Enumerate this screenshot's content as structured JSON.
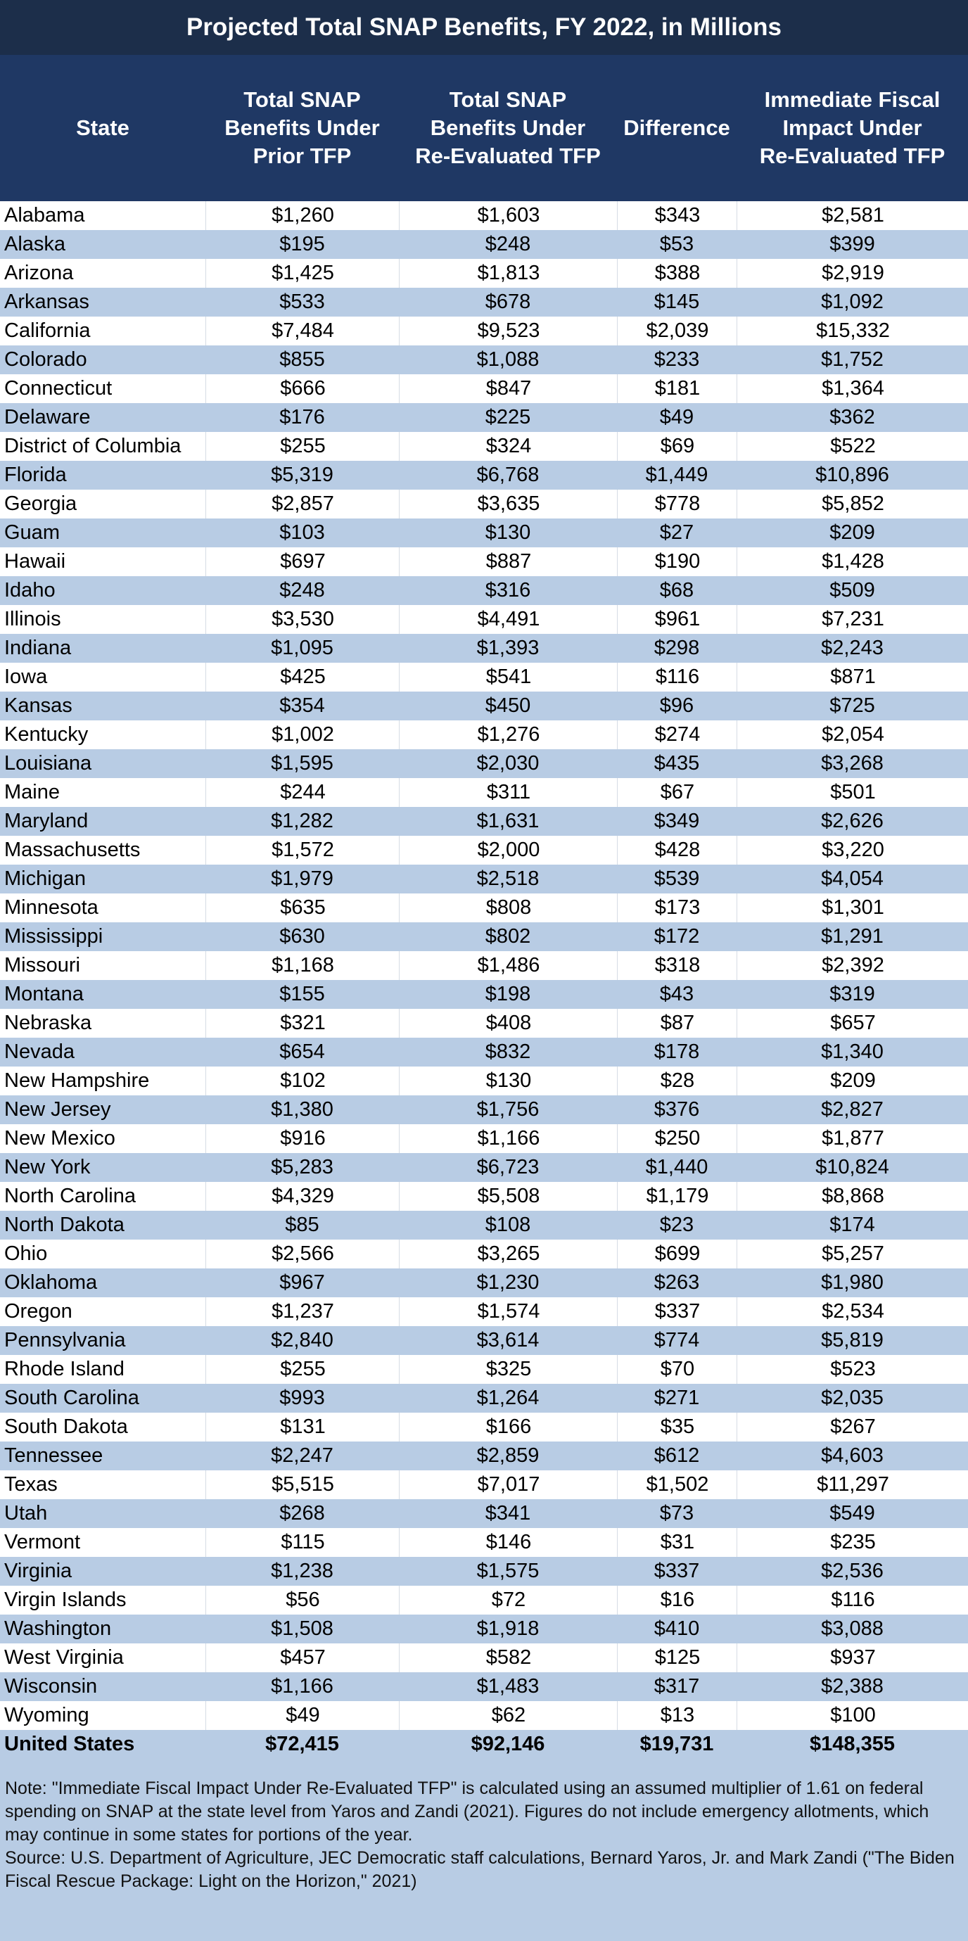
{
  "chart_data": {
    "type": "table",
    "title": "Projected Total SNAP Benefits, FY 2022, in Millions",
    "columns": [
      "State",
      "Total SNAP\nBenefits Under\nPrior TFP",
      "Total SNAP\nBenefits Under\nRe-Evaluated TFP",
      "Difference",
      "Immediate Fiscal\nImpact Under\nRe-Evaluated TFP"
    ],
    "rows": [
      [
        "Alabama",
        "$1,260",
        "$1,603",
        "$343",
        "$2,581"
      ],
      [
        "Alaska",
        "$195",
        "$248",
        "$53",
        "$399"
      ],
      [
        "Arizona",
        "$1,425",
        "$1,813",
        "$388",
        "$2,919"
      ],
      [
        "Arkansas",
        "$533",
        "$678",
        "$145",
        "$1,092"
      ],
      [
        "California",
        "$7,484",
        "$9,523",
        "$2,039",
        "$15,332"
      ],
      [
        "Colorado",
        "$855",
        "$1,088",
        "$233",
        "$1,752"
      ],
      [
        "Connecticut",
        "$666",
        "$847",
        "$181",
        "$1,364"
      ],
      [
        "Delaware",
        "$176",
        "$225",
        "$49",
        "$362"
      ],
      [
        "District of Columbia",
        "$255",
        "$324",
        "$69",
        "$522"
      ],
      [
        "Florida",
        "$5,319",
        "$6,768",
        "$1,449",
        "$10,896"
      ],
      [
        "Georgia",
        "$2,857",
        "$3,635",
        "$778",
        "$5,852"
      ],
      [
        "Guam",
        "$103",
        "$130",
        "$27",
        "$209"
      ],
      [
        "Hawaii",
        "$697",
        "$887",
        "$190",
        "$1,428"
      ],
      [
        "Idaho",
        "$248",
        "$316",
        "$68",
        "$509"
      ],
      [
        "Illinois",
        "$3,530",
        "$4,491",
        "$961",
        "$7,231"
      ],
      [
        "Indiana",
        "$1,095",
        "$1,393",
        "$298",
        "$2,243"
      ],
      [
        "Iowa",
        "$425",
        "$541",
        "$116",
        "$871"
      ],
      [
        "Kansas",
        "$354",
        "$450",
        "$96",
        "$725"
      ],
      [
        "Kentucky",
        "$1,002",
        "$1,276",
        "$274",
        "$2,054"
      ],
      [
        "Louisiana",
        "$1,595",
        "$2,030",
        "$435",
        "$3,268"
      ],
      [
        "Maine",
        "$244",
        "$311",
        "$67",
        "$501"
      ],
      [
        "Maryland",
        "$1,282",
        "$1,631",
        "$349",
        "$2,626"
      ],
      [
        "Massachusetts",
        "$1,572",
        "$2,000",
        "$428",
        "$3,220"
      ],
      [
        "Michigan",
        "$1,979",
        "$2,518",
        "$539",
        "$4,054"
      ],
      [
        "Minnesota",
        "$635",
        "$808",
        "$173",
        "$1,301"
      ],
      [
        "Mississippi",
        "$630",
        "$802",
        "$172",
        "$1,291"
      ],
      [
        "Missouri",
        "$1,168",
        "$1,486",
        "$318",
        "$2,392"
      ],
      [
        "Montana",
        "$155",
        "$198",
        "$43",
        "$319"
      ],
      [
        "Nebraska",
        "$321",
        "$408",
        "$87",
        "$657"
      ],
      [
        "Nevada",
        "$654",
        "$832",
        "$178",
        "$1,340"
      ],
      [
        "New Hampshire",
        "$102",
        "$130",
        "$28",
        "$209"
      ],
      [
        "New Jersey",
        "$1,380",
        "$1,756",
        "$376",
        "$2,827"
      ],
      [
        "New Mexico",
        "$916",
        "$1,166",
        "$250",
        "$1,877"
      ],
      [
        "New York",
        "$5,283",
        "$6,723",
        "$1,440",
        "$10,824"
      ],
      [
        "North Carolina",
        "$4,329",
        "$5,508",
        "$1,179",
        "$8,868"
      ],
      [
        "North Dakota",
        "$85",
        "$108",
        "$23",
        "$174"
      ],
      [
        "Ohio",
        "$2,566",
        "$3,265",
        "$699",
        "$5,257"
      ],
      [
        "Oklahoma",
        "$967",
        "$1,230",
        "$263",
        "$1,980"
      ],
      [
        "Oregon",
        "$1,237",
        "$1,574",
        "$337",
        "$2,534"
      ],
      [
        "Pennsylvania",
        "$2,840",
        "$3,614",
        "$774",
        "$5,819"
      ],
      [
        "Rhode Island",
        "$255",
        "$325",
        "$70",
        "$523"
      ],
      [
        "South Carolina",
        "$993",
        "$1,264",
        "$271",
        "$2,035"
      ],
      [
        "South Dakota",
        "$131",
        "$166",
        "$35",
        "$267"
      ],
      [
        "Tennessee",
        "$2,247",
        "$2,859",
        "$612",
        "$4,603"
      ],
      [
        "Texas",
        "$5,515",
        "$7,017",
        "$1,502",
        "$11,297"
      ],
      [
        "Utah",
        "$268",
        "$341",
        "$73",
        "$549"
      ],
      [
        "Vermont",
        "$115",
        "$146",
        "$31",
        "$235"
      ],
      [
        "Virginia",
        "$1,238",
        "$1,575",
        "$337",
        "$2,536"
      ],
      [
        "Virgin Islands",
        "$56",
        "$72",
        "$16",
        "$116"
      ],
      [
        "Washington",
        "$1,508",
        "$1,918",
        "$410",
        "$3,088"
      ],
      [
        "West Virginia",
        "$457",
        "$582",
        "$125",
        "$937"
      ],
      [
        "Wisconsin",
        "$1,166",
        "$1,483",
        "$317",
        "$2,388"
      ],
      [
        "Wyoming",
        "$49",
        "$62",
        "$13",
        "$100"
      ]
    ],
    "total_row": [
      "United States",
      "$72,415",
      "$92,146",
      "$19,731",
      "$148,355"
    ],
    "notes": [
      "Note: \"Immediate Fiscal Impact Under Re-Evaluated TFP\" is calculated using an assumed multiplier of 1.61 on federal spending on SNAP at the state level from Yaros and Zandi (2021). Figures do not include emergency allotments, which may continue in some states for portions of the year.",
      "Source: U.S. Department of Agriculture, JEC Democratic staff calculations, Bernard Yaros, Jr. and Mark Zandi (\"The Biden Fiscal Rescue Package: Light on the Horizon,\" 2021)"
    ]
  },
  "colors": {
    "title_bg": "#1c2e4a",
    "header_bg": "#1f3864",
    "band_light": "#ffffff",
    "band_blue": "#b8cce4"
  }
}
